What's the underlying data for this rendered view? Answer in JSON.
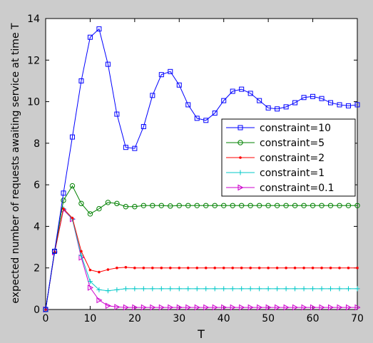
{
  "chart_data": {
    "type": "line",
    "title": "",
    "xlabel": "T",
    "ylabel": "expected number of requests awaiting service at time T",
    "xlim": [
      0,
      70
    ],
    "ylim": [
      0,
      14
    ],
    "xticks": [
      0,
      10,
      20,
      30,
      40,
      50,
      60,
      70
    ],
    "yticks": [
      0,
      2,
      4,
      6,
      8,
      10,
      12,
      14
    ],
    "grid": false,
    "legend_position": "right",
    "background_color": "#cccccc",
    "plot_background_color": "#ffffff",
    "x": [
      0,
      2,
      4,
      6,
      8,
      10,
      12,
      14,
      16,
      18,
      20,
      22,
      24,
      26,
      28,
      30,
      32,
      34,
      36,
      38,
      40,
      42,
      44,
      46,
      48,
      50,
      52,
      54,
      56,
      58,
      60,
      62,
      64,
      66,
      68,
      70
    ],
    "series": [
      {
        "name": "constraint=10",
        "color": "#0000ff",
        "marker": "square",
        "values": [
          0,
          2.8,
          5.6,
          8.3,
          11.0,
          13.1,
          13.5,
          11.8,
          9.4,
          7.8,
          7.75,
          8.8,
          10.3,
          11.3,
          11.45,
          10.8,
          9.85,
          9.2,
          9.1,
          9.45,
          10.05,
          10.5,
          10.6,
          10.4,
          10.05,
          9.7,
          9.65,
          9.75,
          9.95,
          10.2,
          10.25,
          10.15,
          9.95,
          9.85,
          9.8,
          9.85
        ]
      },
      {
        "name": "constraint=5",
        "color": "#008000",
        "marker": "circle",
        "values": [
          0,
          2.8,
          5.25,
          5.95,
          5.1,
          4.6,
          4.85,
          5.15,
          5.1,
          4.95,
          4.95,
          5.0,
          5.0,
          5.0,
          4.98,
          5.0,
          5.0,
          5.0,
          5.0,
          5.0,
          5.0,
          5.0,
          5.0,
          5.0,
          5.0,
          5.0,
          5.0,
          5.0,
          5.0,
          5.0,
          5.0,
          5.0,
          5.0,
          5.0,
          5.0,
          5.0
        ]
      },
      {
        "name": "constraint=2",
        "color": "#ff0000",
        "marker": "dot",
        "values": [
          0,
          2.75,
          4.85,
          4.4,
          2.8,
          1.9,
          1.8,
          1.92,
          2.0,
          2.03,
          2.0,
          2.0,
          2.0,
          2.0,
          2.0,
          2.0,
          2.0,
          2.0,
          2.0,
          2.0,
          2.0,
          2.0,
          2.0,
          2.0,
          2.0,
          2.0,
          2.0,
          2.0,
          2.0,
          2.0,
          2.0,
          2.0,
          2.0,
          2.0,
          2.0,
          2.0
        ]
      },
      {
        "name": "constraint=1",
        "color": "#00c8c8",
        "marker": "plus",
        "values": [
          0,
          2.75,
          4.85,
          4.35,
          2.6,
          1.35,
          0.95,
          0.9,
          0.95,
          1.0,
          1.0,
          1.0,
          1.0,
          1.0,
          1.0,
          1.0,
          1.0,
          1.0,
          1.0,
          1.0,
          1.0,
          1.0,
          1.0,
          1.0,
          1.0,
          1.0,
          1.0,
          1.0,
          1.0,
          1.0,
          1.0,
          1.0,
          1.0,
          1.0,
          1.0,
          1.0
        ]
      },
      {
        "name": "constraint=0.1",
        "color": "#cc00cc",
        "marker": "triangle-right",
        "values": [
          0,
          2.75,
          4.8,
          4.35,
          2.5,
          1.05,
          0.45,
          0.18,
          0.12,
          0.1,
          0.1,
          0.1,
          0.1,
          0.1,
          0.1,
          0.1,
          0.1,
          0.1,
          0.1,
          0.1,
          0.1,
          0.1,
          0.1,
          0.1,
          0.1,
          0.1,
          0.1,
          0.1,
          0.1,
          0.1,
          0.1,
          0.1,
          0.1,
          0.1,
          0.1,
          0.1
        ]
      }
    ]
  }
}
